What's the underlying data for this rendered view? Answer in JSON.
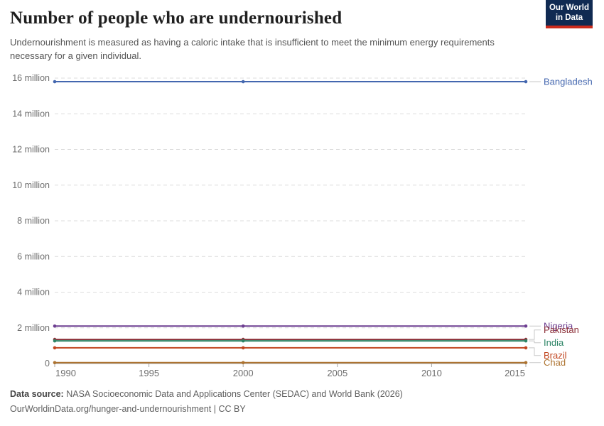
{
  "header": {
    "title": "Number of people who are undernourished",
    "subtitle": "Undernourishment is measured as having a caloric intake that is insufficient to meet the minimum energy requirements necessary for a given individual.",
    "logo": {
      "line1": "Our World",
      "line2": "in Data"
    }
  },
  "chart_data": {
    "type": "line",
    "title": "Number of people who are undernourished",
    "unit": "million people",
    "x": [
      1990,
      2000,
      2015
    ],
    "series": [
      {
        "name": "Bangladesh",
        "color": "#4467af",
        "values": [
          15.8,
          15.8,
          15.8
        ]
      },
      {
        "name": "Nigeria",
        "color": "#6d3e91",
        "values": [
          2.1,
          2.1,
          2.1
        ]
      },
      {
        "name": "Pakistan",
        "color": "#8c3039",
        "values": [
          1.35,
          1.35,
          1.35
        ]
      },
      {
        "name": "India",
        "color": "#2c8465",
        "values": [
          1.27,
          1.27,
          1.27
        ]
      },
      {
        "name": "Brazil",
        "color": "#c1451f",
        "values": [
          0.88,
          0.88,
          0.88
        ]
      },
      {
        "name": "Chad",
        "color": "#ad7330",
        "values": [
          0.05,
          0.05,
          0.05
        ]
      }
    ],
    "y_ticks": [
      {
        "value": 16,
        "label": "16 million"
      },
      {
        "value": 14,
        "label": "14 million"
      },
      {
        "value": 12,
        "label": "12 million"
      },
      {
        "value": 10,
        "label": "10 million"
      },
      {
        "value": 8,
        "label": "8 million"
      },
      {
        "value": 6,
        "label": "6 million"
      },
      {
        "value": 4,
        "label": "4 million"
      },
      {
        "value": 2,
        "label": "2 million"
      },
      {
        "value": 0,
        "label": "0"
      }
    ],
    "x_ticks": [
      "1990",
      "1995",
      "2000",
      "2005",
      "2010",
      "2015"
    ],
    "xlim": [
      1990,
      2015
    ],
    "ylim": [
      0,
      16
    ],
    "grid": "dashed-horizontal",
    "legend_position": "right-of-line-ends",
    "colors": {
      "gridline": "#dcdcdc",
      "axis": "#9e9e9e",
      "tick": "#a5a5a5",
      "axis_label": "#6e6e6e",
      "connector": "#c8c8c8"
    }
  },
  "footer": {
    "source_label": "Data source:",
    "source_text": " NASA Socioeconomic Data and Applications Center (SEDAC) and World Bank (2026)",
    "link_line": "OurWorldinData.org/hunger-and-undernourishment | CC BY"
  }
}
